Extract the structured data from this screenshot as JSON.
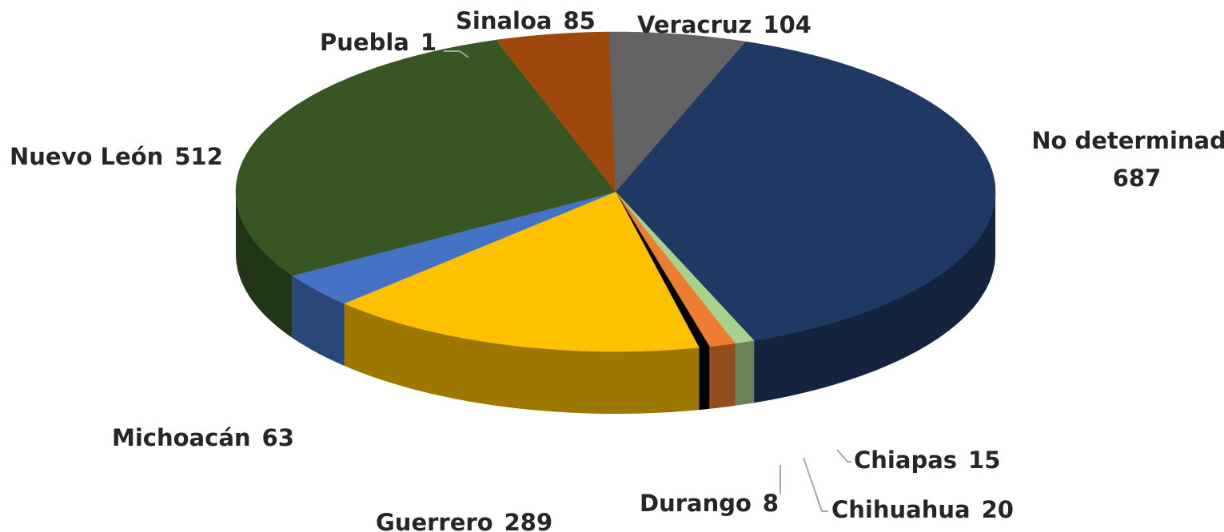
{
  "chart_data": {
    "type": "pie",
    "categories": [
      "No determinado",
      "Chiapas",
      "Chihuahua",
      "Durango",
      "Guerrero",
      "Michoacán",
      "Nuevo León",
      "Puebla",
      "Sinaloa",
      "Veracruz"
    ],
    "values": [
      687,
      15,
      20,
      8,
      289,
      63,
      512,
      1,
      85,
      104
    ],
    "colors": [
      "#203864",
      "#a9d18e",
      "#ed7d31",
      "#000000",
      "#ffc000",
      "#4472c4",
      "#375623",
      "#7f6000",
      "#9e480e",
      "#636363"
    ]
  }
}
